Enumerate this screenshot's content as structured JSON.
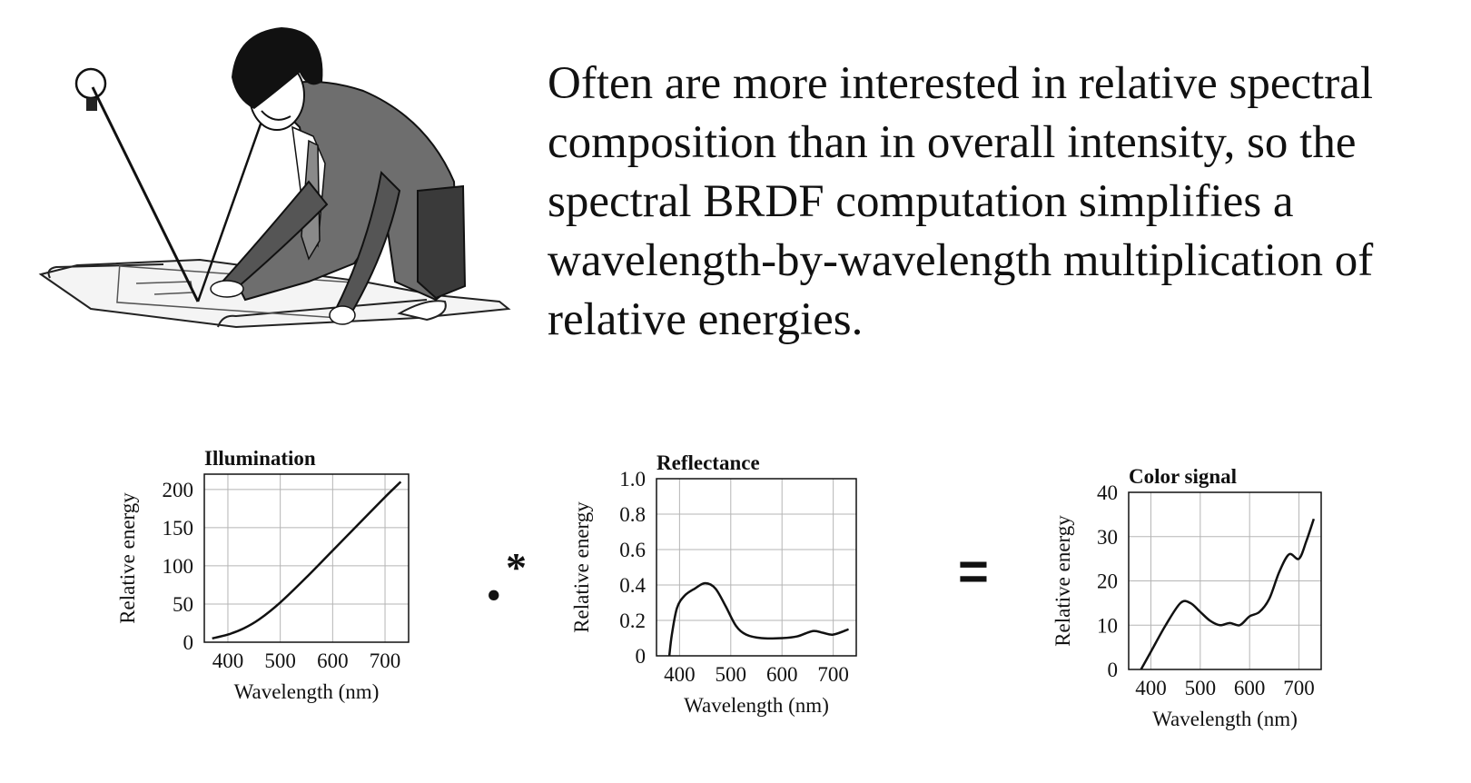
{
  "slide": {
    "caption_lines": [
      "Often are more interested in relative spectral",
      "composition than in overall intensity, so the",
      "spectral BRDF computation simplifies a",
      "wavelength-by-wavelength multiplication of",
      "relative energies."
    ],
    "operator_multiply": ".*",
    "operator_equals": "="
  },
  "illustration": {
    "icon": "person-with-lamp-illustration"
  },
  "chart_data": [
    {
      "type": "line",
      "title": "Illumination",
      "xlabel": "Wavelength (nm)",
      "ylabel": "Relative energy",
      "xlim": [
        355,
        745
      ],
      "ylim": [
        0,
        220
      ],
      "xticks": [
        400,
        500,
        600,
        700
      ],
      "yticks": [
        0,
        50,
        100,
        150,
        200
      ],
      "grid": true,
      "x": [
        370,
        400,
        430,
        460,
        500,
        550,
        600,
        650,
        700,
        730
      ],
      "y": [
        5,
        10,
        18,
        30,
        52,
        85,
        120,
        155,
        190,
        210
      ]
    },
    {
      "type": "line",
      "title": "Reflectance",
      "xlabel": "Wavelength (nm)",
      "ylabel": "Relative energy",
      "xlim": [
        355,
        745
      ],
      "ylim": [
        0,
        1.0
      ],
      "xticks": [
        400,
        500,
        600,
        700
      ],
      "yticks": [
        0,
        0.2,
        0.4,
        0.6,
        0.8,
        1.0
      ],
      "ytick_labels": [
        "0",
        "0.2",
        "0.4",
        "0.6",
        "0.8",
        "1.0"
      ],
      "grid": true,
      "x": [
        380,
        385,
        395,
        410,
        430,
        450,
        470,
        490,
        510,
        530,
        560,
        600,
        630,
        660,
        680,
        700,
        730
      ],
      "y": [
        0,
        0.12,
        0.27,
        0.34,
        0.38,
        0.41,
        0.38,
        0.28,
        0.17,
        0.12,
        0.1,
        0.1,
        0.11,
        0.14,
        0.13,
        0.12,
        0.15
      ]
    },
    {
      "type": "line",
      "title": "Color signal",
      "xlabel": "Wavelength (nm)",
      "ylabel": "Relative energy",
      "xlim": [
        355,
        745
      ],
      "ylim": [
        0,
        40
      ],
      "xticks": [
        400,
        500,
        600,
        700
      ],
      "yticks": [
        0,
        10,
        20,
        30,
        40
      ],
      "grid": true,
      "x": [
        380,
        400,
        430,
        460,
        480,
        500,
        520,
        540,
        560,
        580,
        600,
        620,
        640,
        660,
        680,
        700,
        715,
        730
      ],
      "y": [
        0,
        4,
        10,
        15,
        15,
        13,
        11,
        10,
        10.5,
        10,
        12,
        13,
        16,
        22,
        26,
        25,
        29,
        34
      ]
    }
  ]
}
